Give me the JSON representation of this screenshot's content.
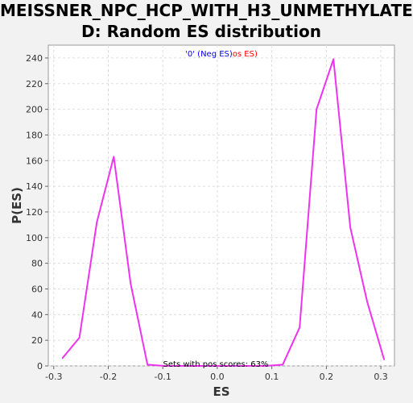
{
  "title_lines": [
    "MEISSNER_NPC_HCP_WITH_H3_UNMETHYLATE",
    "D: Random ES distribution"
  ],
  "chart_data": {
    "type": "line",
    "title": "MEISSNER_NPC_HCP_WITH_H3_UNMETHYLATED: Random ES distribution",
    "xlabel": "ES",
    "ylabel": "P(ES)",
    "xlim": [
      -0.31,
      0.325
    ],
    "ylim": [
      0,
      250
    ],
    "xticks": [
      -0.3,
      -0.2,
      -0.1,
      0.0,
      0.1,
      0.2,
      0.3
    ],
    "xtick_labels": [
      "-0.3",
      "-0.2",
      "-0.1",
      "0.0",
      "0.1",
      "0.2",
      "0.3"
    ],
    "yticks": [
      0,
      20,
      40,
      60,
      80,
      100,
      120,
      140,
      160,
      180,
      200,
      220,
      240
    ],
    "grid": true,
    "legend": {
      "position": "top-center",
      "neg_label": "'0' (Neg ES)",
      "pos_label": "os ES)",
      "neg_color": "#0000ff",
      "pos_color": "#ff0000"
    },
    "annotation": "Sets with pos scores: 63%",
    "series": [
      {
        "color": "#ee33ee",
        "x": [
          -0.284,
          -0.253,
          -0.221,
          -0.19,
          -0.159,
          -0.128,
          -0.097,
          -0.066,
          -0.035,
          -0.004,
          0.027,
          0.058,
          0.089,
          0.12,
          0.151,
          0.182,
          0.213,
          0.244,
          0.275,
          0.306
        ],
        "y": [
          6,
          22,
          112,
          163,
          64,
          1,
          0,
          0,
          0,
          0,
          0,
          0,
          0,
          1,
          30,
          200,
          239,
          108,
          50,
          5
        ]
      }
    ]
  }
}
